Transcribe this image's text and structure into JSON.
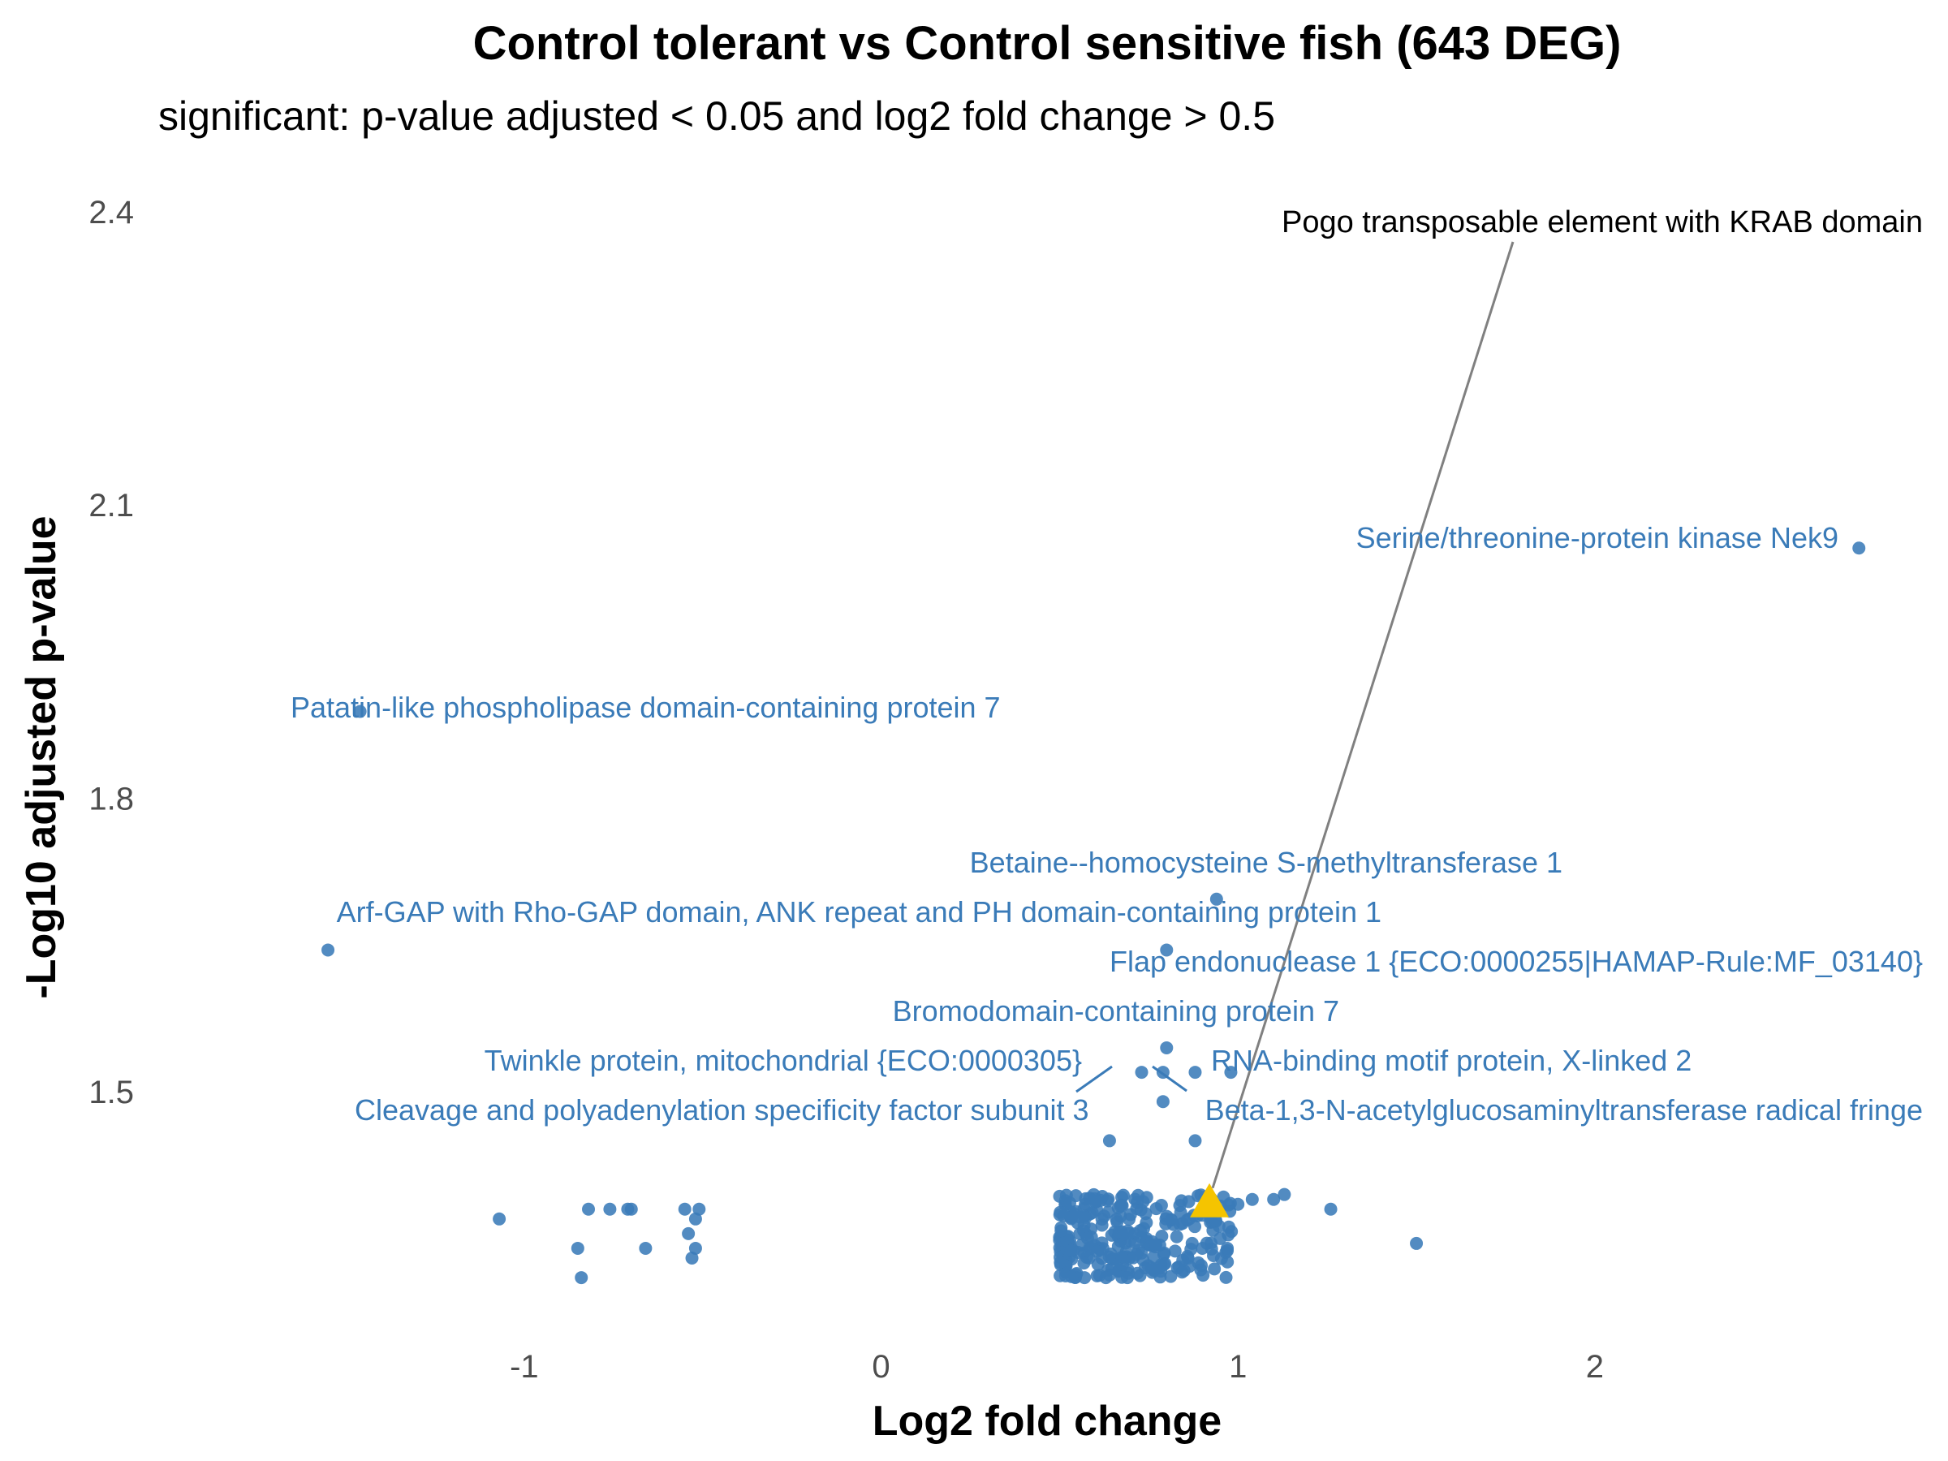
{
  "chart_data": {
    "type": "scatter",
    "title": "Control tolerant vs Control sensitive fish (643 DEG)",
    "subtitle": "significant: p-value adjusted < 0.05 and log2 fold change > 0.5",
    "xlabel": "Log2 fold change",
    "ylabel": "-Log10 adjusted p-value",
    "xlim": [
      -1.98,
      2.91
    ],
    "ylim": [
      1.247,
      2.438
    ],
    "x_ticks": [
      -1,
      0,
      1,
      2
    ],
    "x_tick_labels": [
      "-1",
      "0",
      "1",
      "2"
    ],
    "y_ticks": [
      1.5,
      1.8,
      2.1,
      2.4
    ],
    "y_tick_labels": [
      "1.5",
      "1.8",
      "2.1",
      "2.4"
    ],
    "grid": false,
    "colors": {
      "points": "#3a7bb8",
      "highlight": "#f5c400",
      "connector": "#808080"
    },
    "labeled_points": [
      {
        "label": "Serine/threonine-protein kinase Nek9",
        "x": 2.74,
        "y": 2.056
      },
      {
        "label": "Patatin-like phospholipase domain-containing protein 7",
        "x": -1.46,
        "y": 1.889
      },
      {
        "label": "Betaine--homocysteine S-methyltransferase 1",
        "x": 0.94,
        "y": 1.697
      },
      {
        "label": "Arf-GAP with Rho-GAP domain, ANK repeat and PH domain-containing protein 1",
        "x": -1.55,
        "y": 1.645
      },
      {
        "label": "Flap endonuclease 1 {ECO:0000255|HAMAP-Rule:MF_03140}",
        "x": 0.8,
        "y": 1.645
      },
      {
        "label": "Bromodomain-containing protein 7",
        "x": 0.8,
        "y": 1.545
      },
      {
        "label": "Twinkle protein, mitochondrial {ECO:0000305}",
        "x": 0.73,
        "y": 1.52
      },
      {
        "label": "RNA-binding motif protein, X-linked 2",
        "x": 0.98,
        "y": 1.52
      },
      {
        "label": "Cleavage and polyadenylation specificity factor subunit 3",
        "x": 0.79,
        "y": 1.52
      },
      {
        "label": "Beta-1,3-N-acetylglucosaminyltransferase radical fringe",
        "x": 0.88,
        "y": 1.52
      }
    ],
    "extra_points": [
      {
        "x": 0.79,
        "y": 1.49
      },
      {
        "x": 0.64,
        "y": 1.45
      },
      {
        "x": 0.88,
        "y": 1.45
      }
    ],
    "highlight_point": {
      "label": "Pogo transposable element with KRAB domain",
      "x": 0.92,
      "y": 1.385,
      "marker": "triangle"
    },
    "cluster_points": [
      [
        -1.07,
        1.37
      ],
      [
        -0.82,
        1.38
      ],
      [
        -0.76,
        1.38
      ],
      [
        -0.71,
        1.38
      ],
      [
        -0.7,
        1.38
      ],
      [
        -0.55,
        1.38
      ],
      [
        -0.51,
        1.38
      ],
      [
        -0.85,
        1.34
      ],
      [
        -0.66,
        1.34
      ],
      [
        -0.52,
        1.34
      ],
      [
        -0.54,
        1.355
      ],
      [
        -0.52,
        1.37
      ],
      [
        -0.53,
        1.33
      ],
      [
        -0.84,
        1.31
      ],
      [
        1.1,
        1.39
      ],
      [
        1.13,
        1.395
      ],
      [
        1.26,
        1.38
      ],
      [
        1.5,
        1.345
      ],
      [
        1.04,
        1.39
      ],
      [
        1.0,
        1.385
      ],
      [
        0.95,
        1.35
      ],
      [
        0.97,
        1.34
      ],
      [
        0.9,
        1.34
      ],
      [
        0.86,
        1.33
      ],
      [
        0.83,
        1.32
      ],
      [
        0.78,
        1.32
      ],
      [
        0.74,
        1.32
      ],
      [
        0.69,
        1.31
      ],
      [
        0.63,
        1.31
      ],
      [
        0.57,
        1.31
      ]
    ],
    "cluster_band": {
      "x": [
        0.5,
        1.0
      ],
      "y": [
        1.31,
        1.395
      ],
      "count": 260
    }
  }
}
